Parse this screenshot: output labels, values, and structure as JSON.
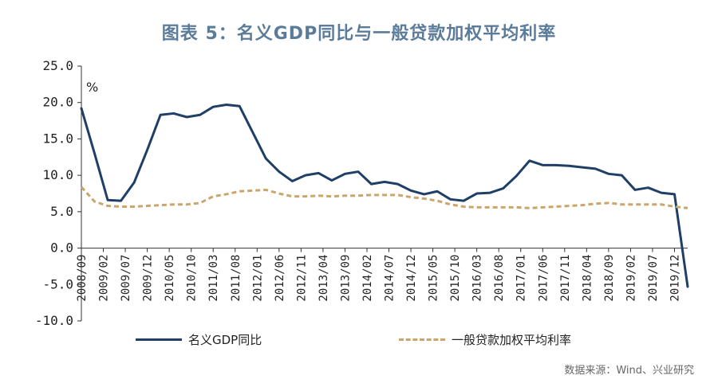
{
  "title": "图表 5：名义GDP同比与一般贷款加权平均利率",
  "source": "数据来源：Wind、兴业研究",
  "colors": {
    "title": "#5b7b9a",
    "gdp": "#1f3f66",
    "rate": "#c9a66b"
  },
  "chart_data": {
    "type": "line",
    "unit_label": "%",
    "ylim": [
      -10,
      25
    ],
    "y_ticks": [
      "25.0",
      "20.0",
      "15.0",
      "10.0",
      "5.0",
      "0.0",
      "-5.0",
      "-10.0"
    ],
    "x_tick_labels": [
      "2008/09",
      "2009/02",
      "2009/07",
      "2009/12",
      "2010/05",
      "2010/10",
      "2011/03",
      "2011/08",
      "2012/01",
      "2012/06",
      "2012/11",
      "2013/04",
      "2013/09",
      "2014/02",
      "2014/07",
      "2014/12",
      "2015/05",
      "2015/10",
      "2016/03",
      "2016/08",
      "2017/01",
      "2017/06",
      "2017/11",
      "2018/04",
      "2018/09",
      "2019/02",
      "2019/07",
      "2019/12"
    ],
    "legend_placement": "bottom",
    "grid": false,
    "series": [
      {
        "name": "名义GDP同比",
        "style": "solid",
        "color": "#1f3f66",
        "points": [
          [
            "2008/09",
            19.2
          ],
          [
            "2008/12",
            13.0
          ],
          [
            "2009/03",
            6.6
          ],
          [
            "2009/06",
            6.5
          ],
          [
            "2009/09",
            9.0
          ],
          [
            "2009/12",
            13.5
          ],
          [
            "2010/03",
            18.3
          ],
          [
            "2010/06",
            18.5
          ],
          [
            "2010/09",
            18.0
          ],
          [
            "2010/12",
            18.3
          ],
          [
            "2011/03",
            19.4
          ],
          [
            "2011/06",
            19.7
          ],
          [
            "2011/09",
            19.5
          ],
          [
            "2011/12",
            15.9
          ],
          [
            "2012/03",
            12.3
          ],
          [
            "2012/06",
            10.5
          ],
          [
            "2012/09",
            9.2
          ],
          [
            "2012/12",
            10.0
          ],
          [
            "2013/03",
            10.3
          ],
          [
            "2013/06",
            9.3
          ],
          [
            "2013/09",
            10.2
          ],
          [
            "2013/12",
            10.5
          ],
          [
            "2014/03",
            8.8
          ],
          [
            "2014/06",
            9.1
          ],
          [
            "2014/09",
            8.8
          ],
          [
            "2014/12",
            7.9
          ],
          [
            "2015/03",
            7.4
          ],
          [
            "2015/06",
            7.8
          ],
          [
            "2015/09",
            6.7
          ],
          [
            "2015/12",
            6.5
          ],
          [
            "2016/03",
            7.5
          ],
          [
            "2016/06",
            7.6
          ],
          [
            "2016/09",
            8.2
          ],
          [
            "2016/12",
            9.9
          ],
          [
            "2017/03",
            12.0
          ],
          [
            "2017/06",
            11.4
          ],
          [
            "2017/09",
            11.4
          ],
          [
            "2017/12",
            11.3
          ],
          [
            "2018/03",
            11.1
          ],
          [
            "2018/06",
            10.9
          ],
          [
            "2018/09",
            10.2
          ],
          [
            "2018/12",
            10.0
          ],
          [
            "2019/03",
            8.0
          ],
          [
            "2019/06",
            8.3
          ],
          [
            "2019/09",
            7.6
          ],
          [
            "2019/12",
            7.4
          ],
          [
            "2020/03",
            -5.3
          ]
        ]
      },
      {
        "name": "一般贷款加权平均利率",
        "style": "dashed",
        "color": "#c9a66b",
        "points": [
          [
            "2008/09",
            8.4
          ],
          [
            "2008/12",
            6.4
          ],
          [
            "2009/03",
            5.8
          ],
          [
            "2009/06",
            5.7
          ],
          [
            "2009/09",
            5.7
          ],
          [
            "2009/12",
            5.8
          ],
          [
            "2010/03",
            5.9
          ],
          [
            "2010/06",
            6.0
          ],
          [
            "2010/09",
            6.0
          ],
          [
            "2010/12",
            6.2
          ],
          [
            "2011/03",
            7.1
          ],
          [
            "2011/06",
            7.4
          ],
          [
            "2011/09",
            7.8
          ],
          [
            "2011/12",
            7.9
          ],
          [
            "2012/03",
            8.0
          ],
          [
            "2012/06",
            7.5
          ],
          [
            "2012/09",
            7.1
          ],
          [
            "2012/12",
            7.1
          ],
          [
            "2013/03",
            7.2
          ],
          [
            "2013/06",
            7.1
          ],
          [
            "2013/09",
            7.2
          ],
          [
            "2013/12",
            7.2
          ],
          [
            "2014/03",
            7.3
          ],
          [
            "2014/06",
            7.3
          ],
          [
            "2014/09",
            7.3
          ],
          [
            "2014/12",
            7.0
          ],
          [
            "2015/03",
            6.8
          ],
          [
            "2015/06",
            6.5
          ],
          [
            "2015/09",
            6.0
          ],
          [
            "2015/12",
            5.7
          ],
          [
            "2016/03",
            5.6
          ],
          [
            "2016/06",
            5.6
          ],
          [
            "2016/09",
            5.6
          ],
          [
            "2016/12",
            5.6
          ],
          [
            "2017/03",
            5.5
          ],
          [
            "2017/06",
            5.6
          ],
          [
            "2017/09",
            5.7
          ],
          [
            "2017/12",
            5.8
          ],
          [
            "2018/03",
            5.9
          ],
          [
            "2018/06",
            6.1
          ],
          [
            "2018/09",
            6.2
          ],
          [
            "2018/12",
            6.0
          ],
          [
            "2019/03",
            6.0
          ],
          [
            "2019/06",
            6.0
          ],
          [
            "2019/09",
            6.0
          ],
          [
            "2019/12",
            5.7
          ],
          [
            "2020/03",
            5.5
          ]
        ]
      }
    ]
  }
}
